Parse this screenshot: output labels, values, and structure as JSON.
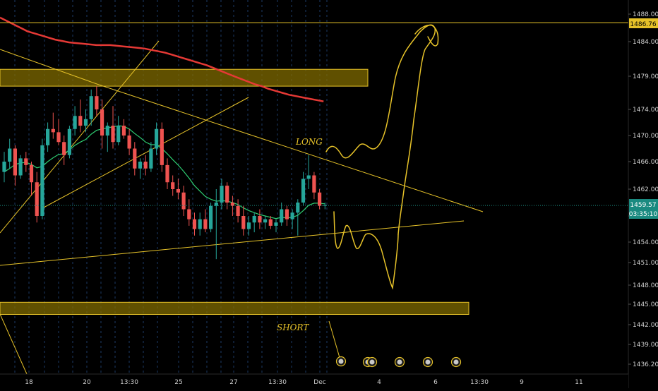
{
  "chart_data": {
    "type": "candlestick",
    "title": "",
    "grid": true,
    "y_axis": {
      "position": "right",
      "range": [
        1434.5,
        1489.5
      ],
      "ticks": [
        1488.0,
        1484.0,
        1479.0,
        1474.0,
        1470.0,
        1466.0,
        1462.0,
        1458.0,
        1454.0,
        1451.0,
        1448.0,
        1445.0,
        1442.0,
        1439.0,
        1436.2
      ],
      "tick_labels": [
        "1488.00",
        "1484.00",
        "1479.00",
        "1474.00",
        "1470.00",
        "1466.00",
        "1462.00",
        "1458.00",
        "1454.00",
        "1451.00",
        "1448.00",
        "1445.00",
        "1442.00",
        "1439.00",
        "1436.20"
      ]
    },
    "x_axis": {
      "tick_labels": [
        "18",
        "20",
        "13:30",
        "25",
        "27",
        "13:30",
        "Dec",
        "4",
        "6",
        "13:30",
        "9",
        "11"
      ]
    },
    "price_labels": {
      "resistance": "1486.76",
      "last": "1459.57",
      "countdown": "03:35:10"
    },
    "levels": {
      "resistance": 1486.76,
      "last": 1459.57
    },
    "zones": [
      {
        "from": 1477.5,
        "to": 1480.0,
        "color": "#806b00"
      },
      {
        "from": 1443.5,
        "to": 1445.3,
        "color": "#806b00"
      }
    ],
    "candles": [
      [
        1464.5,
        1467.5,
        1463.0,
        1466.0
      ],
      [
        1466.0,
        1469.5,
        1465.0,
        1468.0
      ],
      [
        1468.0,
        1468.5,
        1462.5,
        1464.0
      ],
      [
        1464.0,
        1467.0,
        1463.5,
        1466.5
      ],
      [
        1466.5,
        1467.5,
        1464.5,
        1465.5
      ],
      [
        1465.5,
        1466.0,
        1461.0,
        1463.0
      ],
      [
        1463.0,
        1464.5,
        1457.0,
        1458.0
      ],
      [
        1458.0,
        1469.5,
        1457.5,
        1468.5
      ],
      [
        1468.5,
        1472.0,
        1467.5,
        1471.0
      ],
      [
        1471.0,
        1473.5,
        1469.5,
        1470.5
      ],
      [
        1470.5,
        1472.5,
        1468.5,
        1469.0
      ],
      [
        1469.0,
        1470.0,
        1465.5,
        1467.0
      ],
      [
        1467.0,
        1471.5,
        1466.5,
        1471.0
      ],
      [
        1471.0,
        1474.5,
        1470.0,
        1473.0
      ],
      [
        1473.0,
        1475.5,
        1470.5,
        1471.5
      ],
      [
        1471.5,
        1474.0,
        1470.5,
        1472.5
      ],
      [
        1472.5,
        1477.0,
        1471.5,
        1476.0
      ],
      [
        1476.0,
        1477.5,
        1473.0,
        1474.0
      ],
      [
        1474.0,
        1475.5,
        1468.0,
        1470.0
      ],
      [
        1470.0,
        1472.0,
        1467.5,
        1471.5
      ],
      [
        1471.5,
        1474.5,
        1468.0,
        1469.0
      ],
      [
        1469.0,
        1473.0,
        1468.5,
        1471.5
      ],
      [
        1471.5,
        1472.5,
        1469.5,
        1470.0
      ],
      [
        1470.0,
        1471.0,
        1467.0,
        1468.0
      ],
      [
        1468.0,
        1469.0,
        1464.0,
        1465.0
      ],
      [
        1465.0,
        1466.5,
        1463.5,
        1466.0
      ],
      [
        1466.0,
        1467.0,
        1464.0,
        1465.0
      ],
      [
        1465.0,
        1469.0,
        1464.5,
        1468.0
      ],
      [
        1468.0,
        1472.0,
        1467.0,
        1471.0
      ],
      [
        1471.0,
        1472.0,
        1464.5,
        1465.5
      ],
      [
        1465.5,
        1466.5,
        1462.0,
        1463.0
      ],
      [
        1463.0,
        1464.0,
        1461.0,
        1462.0
      ],
      [
        1462.0,
        1463.5,
        1460.5,
        1461.5
      ],
      [
        1461.5,
        1462.5,
        1458.0,
        1459.0
      ],
      [
        1459.0,
        1460.5,
        1456.5,
        1457.5
      ],
      [
        1457.5,
        1458.5,
        1455.0,
        1456.0
      ],
      [
        1456.0,
        1458.5,
        1455.0,
        1457.5
      ],
      [
        1457.5,
        1459.0,
        1455.5,
        1456.0
      ],
      [
        1456.0,
        1460.0,
        1455.5,
        1459.5
      ],
      [
        1459.5,
        1462.0,
        1451.5,
        1460.0
      ],
      [
        1460.0,
        1463.5,
        1459.0,
        1462.5
      ],
      [
        1462.5,
        1463.0,
        1459.0,
        1460.0
      ],
      [
        1460.0,
        1461.0,
        1458.0,
        1459.5
      ],
      [
        1459.5,
        1460.5,
        1457.0,
        1458.0
      ],
      [
        1458.0,
        1459.5,
        1455.0,
        1456.0
      ],
      [
        1456.0,
        1458.0,
        1455.0,
        1457.0
      ],
      [
        1457.0,
        1458.5,
        1455.5,
        1458.0
      ],
      [
        1458.0,
        1459.0,
        1456.0,
        1457.0
      ],
      [
        1457.0,
        1458.0,
        1456.0,
        1457.5
      ],
      [
        1457.5,
        1458.0,
        1456.0,
        1456.5
      ],
      [
        1456.5,
        1457.5,
        1455.5,
        1457.0
      ],
      [
        1457.0,
        1460.0,
        1456.5,
        1459.0
      ],
      [
        1459.0,
        1459.5,
        1456.5,
        1457.5
      ],
      [
        1457.5,
        1459.0,
        1456.0,
        1458.5
      ],
      [
        1458.5,
        1460.5,
        1455.0,
        1460.0
      ],
      [
        1460.0,
        1464.5,
        1459.5,
        1463.5
      ],
      [
        1463.5,
        1467.0,
        1462.0,
        1464.0
      ],
      [
        1464.0,
        1464.5,
        1460.5,
        1461.5
      ],
      [
        1461.5,
        1462.0,
        1459.0,
        1459.5
      ],
      [
        1459.5,
        1460.0,
        1459.0,
        1459.6
      ]
    ],
    "moving_averages": [
      {
        "color": "#2ecc71",
        "values": [
          1464.5,
          1465.0,
          1465.6,
          1465.8,
          1465.9,
          1465.6,
          1465.1,
          1465.3,
          1466.0,
          1466.6,
          1467.1,
          1467.2,
          1467.8,
          1468.5,
          1469.0,
          1469.4,
          1470.2,
          1470.8,
          1471.0,
          1471.2,
          1471.3,
          1471.5,
          1471.4,
          1471.0,
          1470.3,
          1469.7,
          1469.0,
          1468.6,
          1468.6,
          1468.0,
          1467.2,
          1466.3,
          1465.5,
          1464.6,
          1463.6,
          1462.5,
          1461.7,
          1460.9,
          1460.5,
          1460.2,
          1460.3,
          1460.2,
          1460.0,
          1459.7,
          1459.2,
          1458.8,
          1458.5,
          1458.2,
          1458.0,
          1457.8,
          1457.6,
          1457.8,
          1457.7,
          1457.8,
          1458.1,
          1458.8,
          1459.6,
          1459.9,
          1459.9,
          1459.8
        ]
      },
      {
        "color": "#e53935",
        "values": [
          1487.5,
          1487.0,
          1486.5,
          1486.0,
          1485.5,
          1485.2,
          1484.9,
          1484.6,
          1484.3,
          1484.1,
          1483.9,
          1483.8,
          1483.7,
          1483.6,
          1483.5,
          1483.5,
          1483.5,
          1483.4,
          1483.3,
          1483.2,
          1483.1,
          1483.0,
          1482.8,
          1482.6,
          1482.4,
          1482.1,
          1481.8,
          1481.5,
          1481.2,
          1480.9,
          1480.6,
          1480.2,
          1479.8,
          1479.4,
          1479.0,
          1478.6,
          1478.2,
          1477.8,
          1477.5,
          1477.1,
          1476.8,
          1476.5,
          1476.2,
          1476.0,
          1475.8,
          1475.6,
          1475.4,
          1475.2
        ]
      }
    ],
    "annotations": [
      "LONG",
      "SHORT"
    ]
  },
  "colors": {
    "background": "#000000",
    "up": "#26a69a",
    "down": "#ef5350",
    "drawing": "#e6c229",
    "label_text": "#000000"
  }
}
